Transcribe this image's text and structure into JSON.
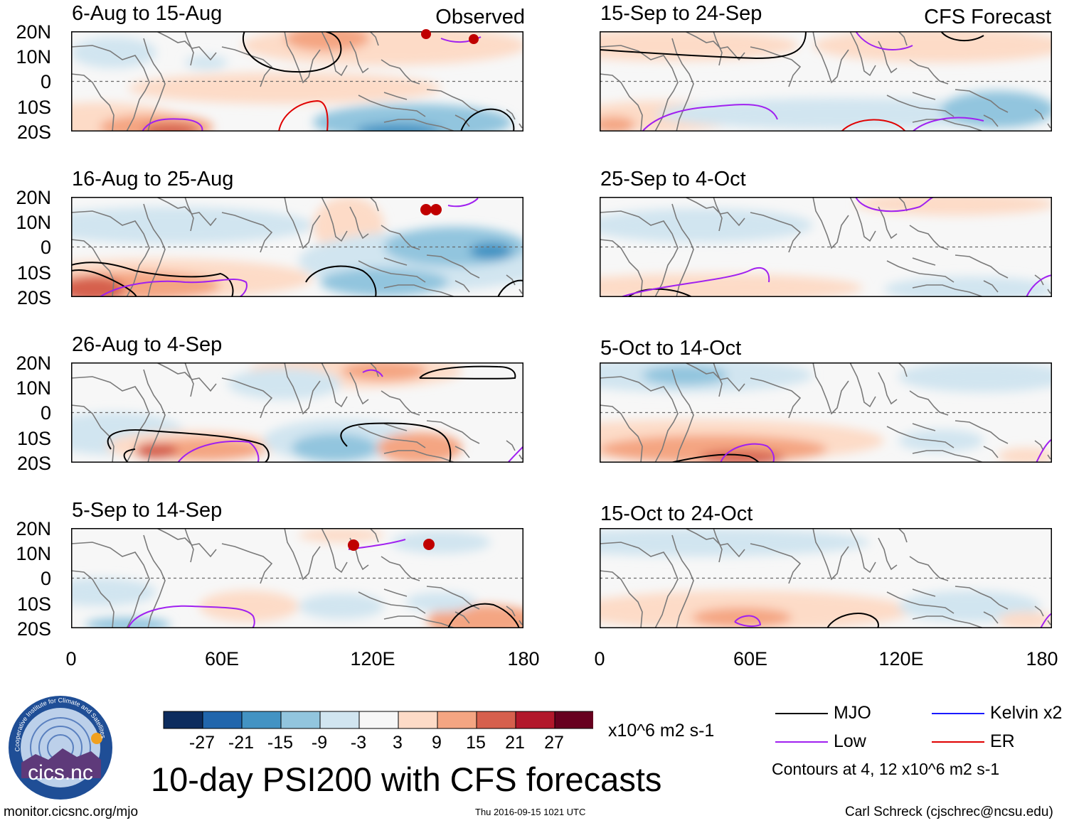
{
  "header": {
    "observed_label": "Observed",
    "forecast_label": "CFS Forecast"
  },
  "panels": {
    "left": [
      {
        "title": "6-Aug to 15-Aug"
      },
      {
        "title": "16-Aug to 25-Aug"
      },
      {
        "title": "26-Aug to 4-Sep"
      },
      {
        "title": "5-Sep to 14-Sep"
      }
    ],
    "right": [
      {
        "title": "15-Sep to 24-Sep"
      },
      {
        "title": "25-Sep to 4-Oct"
      },
      {
        "title": "5-Oct to 14-Oct"
      },
      {
        "title": "15-Oct to 24-Oct"
      }
    ]
  },
  "axes": {
    "lat_labels": [
      "20N",
      "10N",
      "0",
      "10S",
      "20S"
    ],
    "lon_labels": [
      "0",
      "60E",
      "120E",
      "180"
    ]
  },
  "colorbar": {
    "colors": [
      "#0d2c5e",
      "#2166ac",
      "#4393c3",
      "#92c5de",
      "#d1e5f0",
      "#f7f7f7",
      "#fddbc7",
      "#f4a582",
      "#d6604d",
      "#b2182b",
      "#67001f"
    ],
    "ticks": [
      "-27",
      "-21",
      "-15",
      "-9",
      "-3",
      "3",
      "9",
      "15",
      "21",
      "27"
    ],
    "units": "x10^6 m2 s-1"
  },
  "title": "10-day PSI200 with CFS forecasts",
  "legend": {
    "items": [
      {
        "label": "MJO",
        "color": "#000000"
      },
      {
        "label": "Kelvin x2",
        "color": "#1a1aff"
      },
      {
        "label": "Low",
        "color": "#a020f0"
      },
      {
        "label": "ER",
        "color": "#e00000"
      }
    ],
    "note": "Contours at 4, 12 x10^6 m2 s-1"
  },
  "logo": {
    "text": "cics.nc",
    "ring_text": "Cooperative Institute for Climate and Satellites"
  },
  "footer": {
    "url": "monitor.cicsnc.org/mjo",
    "timestamp": "Thu 2016-09-15 1021 UTC",
    "author": "Carl Schreck (cjschrec@ncsu.edu)"
  }
}
